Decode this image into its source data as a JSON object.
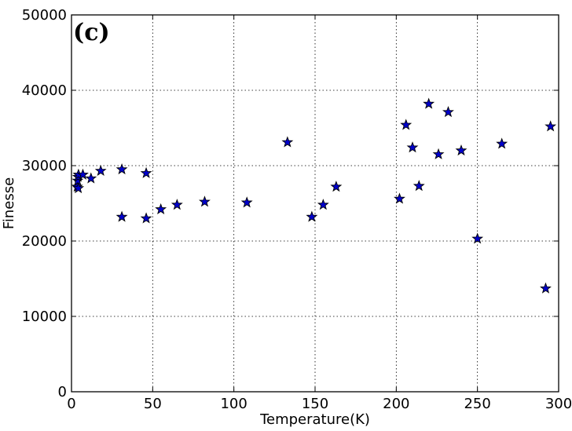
{
  "chart_data": {
    "type": "scatter",
    "annotation": "(c)",
    "xlabel": "Temperature(K)",
    "ylabel": "Finesse",
    "xlim": [
      0,
      300
    ],
    "ylim": [
      0,
      50000
    ],
    "xticks": [
      "0",
      "50",
      "100",
      "150",
      "200",
      "250",
      "300"
    ],
    "yticks": [
      "0",
      "10000",
      "20000",
      "30000",
      "40000",
      "50000"
    ],
    "grid": true,
    "marker": "star",
    "marker_color": "#0000cc",
    "marker_edge_color": "#000000",
    "points": [
      {
        "x": 3.5,
        "y": 27200
      },
      {
        "x": 3.8,
        "y": 28000
      },
      {
        "x": 4.0,
        "y": 28500
      },
      {
        "x": 4.2,
        "y": 27000
      },
      {
        "x": 4.3,
        "y": 28800
      },
      {
        "x": 7,
        "y": 28800
      },
      {
        "x": 12,
        "y": 28300
      },
      {
        "x": 18,
        "y": 29300
      },
      {
        "x": 31,
        "y": 29500
      },
      {
        "x": 31,
        "y": 23200
      },
      {
        "x": 46,
        "y": 29000
      },
      {
        "x": 46,
        "y": 23000
      },
      {
        "x": 55,
        "y": 24200
      },
      {
        "x": 65,
        "y": 24800
      },
      {
        "x": 82,
        "y": 25200
      },
      {
        "x": 108,
        "y": 25100
      },
      {
        "x": 133,
        "y": 33100
      },
      {
        "x": 148,
        "y": 23200
      },
      {
        "x": 155,
        "y": 24800
      },
      {
        "x": 163,
        "y": 27200
      },
      {
        "x": 202,
        "y": 25600
      },
      {
        "x": 206,
        "y": 35400
      },
      {
        "x": 210,
        "y": 32400
      },
      {
        "x": 214,
        "y": 27300
      },
      {
        "x": 220,
        "y": 38200
      },
      {
        "x": 226,
        "y": 31500
      },
      {
        "x": 232,
        "y": 37100
      },
      {
        "x": 240,
        "y": 32000
      },
      {
        "x": 250,
        "y": 20300
      },
      {
        "x": 265,
        "y": 32900
      },
      {
        "x": 292,
        "y": 13700
      },
      {
        "x": 295,
        "y": 35200
      }
    ]
  }
}
